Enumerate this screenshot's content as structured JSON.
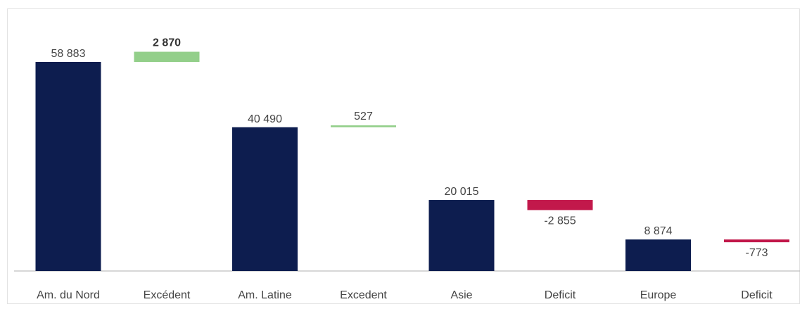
{
  "chart_data": {
    "type": "bar",
    "subtype": "waterfall-style",
    "ylim": [
      0,
      65000
    ],
    "grid": false,
    "legend": "none",
    "colors": {
      "base": "#0d1d4f",
      "surplus": "#93cf8a",
      "deficit": "#c2184b",
      "axis": "#bfbfbf"
    },
    "categories": [
      "Am. du Nord",
      "Excédent",
      "Am. Latine",
      "Excedent",
      "Asie",
      "Deficit",
      "Europe",
      "Deficit"
    ],
    "bars": [
      {
        "category": "Am. du Nord",
        "kind": "base",
        "value": 58883,
        "label": "58 883"
      },
      {
        "category": "Excédent",
        "kind": "surplus",
        "value": 2870,
        "label": "2 870"
      },
      {
        "category": "Am. Latine",
        "kind": "base",
        "value": 40490,
        "label": "40 490"
      },
      {
        "category": "Excedent",
        "kind": "surplus",
        "value": 527,
        "label": "527"
      },
      {
        "category": "Asie",
        "kind": "base",
        "value": 20015,
        "label": "20 015"
      },
      {
        "category": "Deficit",
        "kind": "deficit",
        "value": -2855,
        "label": "-2 855"
      },
      {
        "category": "Europe",
        "kind": "base",
        "value": 8874,
        "label": "8 874"
      },
      {
        "category": "Deficit",
        "kind": "deficit",
        "value": -773,
        "label": "-773"
      }
    ]
  }
}
